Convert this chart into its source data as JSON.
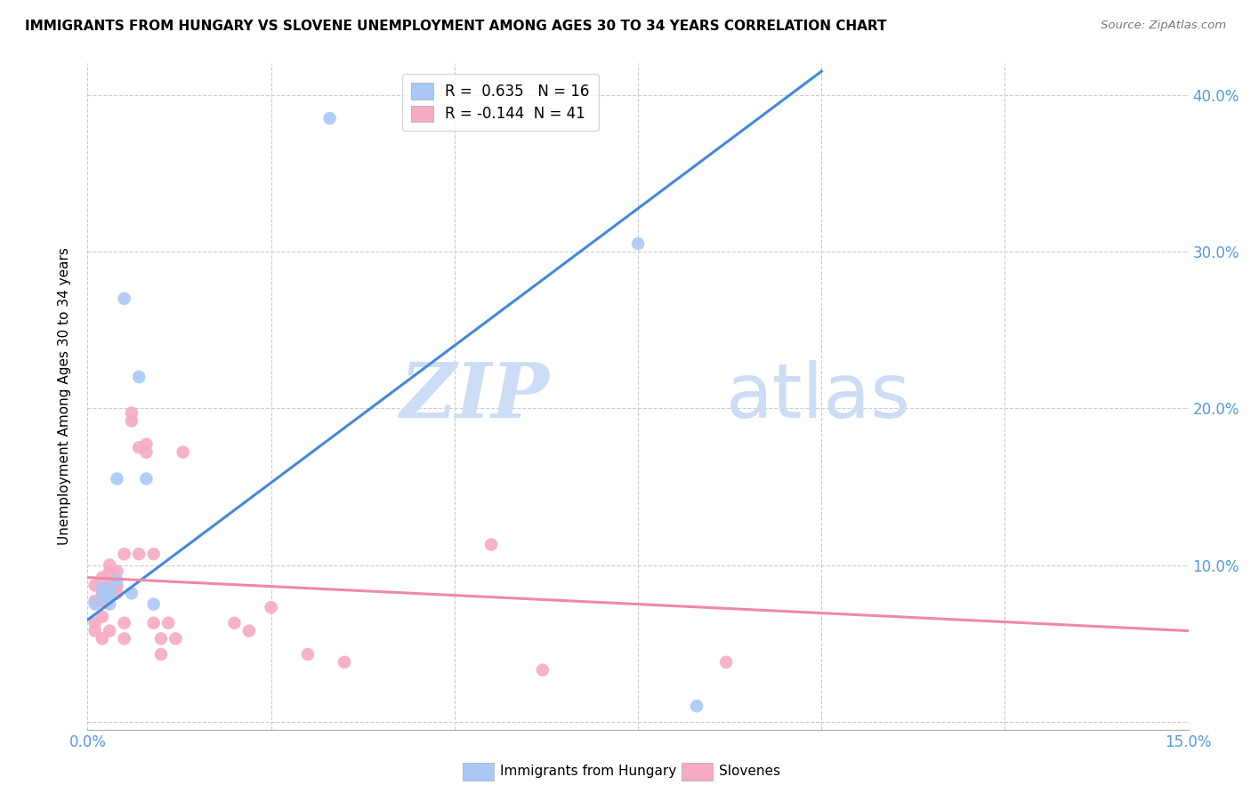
{
  "title": "IMMIGRANTS FROM HUNGARY VS SLOVENE UNEMPLOYMENT AMONG AGES 30 TO 34 YEARS CORRELATION CHART",
  "source": "Source: ZipAtlas.com",
  "ylabel": "Unemployment Among Ages 30 to 34 years",
  "xlim": [
    0.0,
    0.15
  ],
  "ylim": [
    -0.005,
    0.42
  ],
  "x_ticks": [
    0.0,
    0.025,
    0.05,
    0.075,
    0.1,
    0.125,
    0.15
  ],
  "x_tick_labels": [
    "0.0%",
    "",
    "",
    "",
    "",
    "",
    "15.0%"
  ],
  "y_ticks": [
    0.0,
    0.1,
    0.2,
    0.3,
    0.4
  ],
  "y_tick_labels": [
    "",
    "10.0%",
    "20.0%",
    "30.0%",
    "40.0%"
  ],
  "watermark_zip": "ZIP",
  "watermark_atlas": "atlas",
  "legend_blue_r": "0.635",
  "legend_blue_n": "16",
  "legend_pink_r": "-0.144",
  "legend_pink_n": "41",
  "blue_color": "#aac8f5",
  "pink_color": "#f5aac5",
  "blue_line_color": "#4488dd",
  "pink_line_color": "#ee88aa",
  "blue_scatter": [
    [
      0.001,
      0.075
    ],
    [
      0.002,
      0.085
    ],
    [
      0.002,
      0.08
    ],
    [
      0.003,
      0.08
    ],
    [
      0.003,
      0.085
    ],
    [
      0.003,
      0.075
    ],
    [
      0.004,
      0.155
    ],
    [
      0.004,
      0.09
    ],
    [
      0.005,
      0.27
    ],
    [
      0.006,
      0.082
    ],
    [
      0.007,
      0.22
    ],
    [
      0.008,
      0.155
    ],
    [
      0.009,
      0.075
    ],
    [
      0.033,
      0.385
    ],
    [
      0.075,
      0.305
    ],
    [
      0.083,
      0.01
    ]
  ],
  "pink_scatter": [
    [
      0.001,
      0.087
    ],
    [
      0.001,
      0.077
    ],
    [
      0.001,
      0.063
    ],
    [
      0.001,
      0.058
    ],
    [
      0.002,
      0.092
    ],
    [
      0.002,
      0.082
    ],
    [
      0.002,
      0.077
    ],
    [
      0.002,
      0.067
    ],
    [
      0.002,
      0.053
    ],
    [
      0.003,
      0.1
    ],
    [
      0.003,
      0.096
    ],
    [
      0.003,
      0.087
    ],
    [
      0.003,
      0.082
    ],
    [
      0.003,
      0.058
    ],
    [
      0.004,
      0.096
    ],
    [
      0.004,
      0.087
    ],
    [
      0.004,
      0.082
    ],
    [
      0.005,
      0.107
    ],
    [
      0.005,
      0.063
    ],
    [
      0.005,
      0.053
    ],
    [
      0.006,
      0.192
    ],
    [
      0.006,
      0.197
    ],
    [
      0.007,
      0.107
    ],
    [
      0.007,
      0.175
    ],
    [
      0.008,
      0.177
    ],
    [
      0.008,
      0.172
    ],
    [
      0.009,
      0.107
    ],
    [
      0.009,
      0.063
    ],
    [
      0.01,
      0.053
    ],
    [
      0.01,
      0.043
    ],
    [
      0.011,
      0.063
    ],
    [
      0.012,
      0.053
    ],
    [
      0.013,
      0.172
    ],
    [
      0.02,
      0.063
    ],
    [
      0.022,
      0.058
    ],
    [
      0.025,
      0.073
    ],
    [
      0.03,
      0.043
    ],
    [
      0.035,
      0.038
    ],
    [
      0.055,
      0.113
    ],
    [
      0.062,
      0.033
    ],
    [
      0.087,
      0.038
    ]
  ],
  "blue_trendline_x": [
    0.0,
    0.1
  ],
  "blue_trendline_y": [
    0.065,
    0.415
  ],
  "pink_trendline_x": [
    0.0,
    0.15
  ],
  "pink_trendline_y": [
    0.092,
    0.058
  ]
}
